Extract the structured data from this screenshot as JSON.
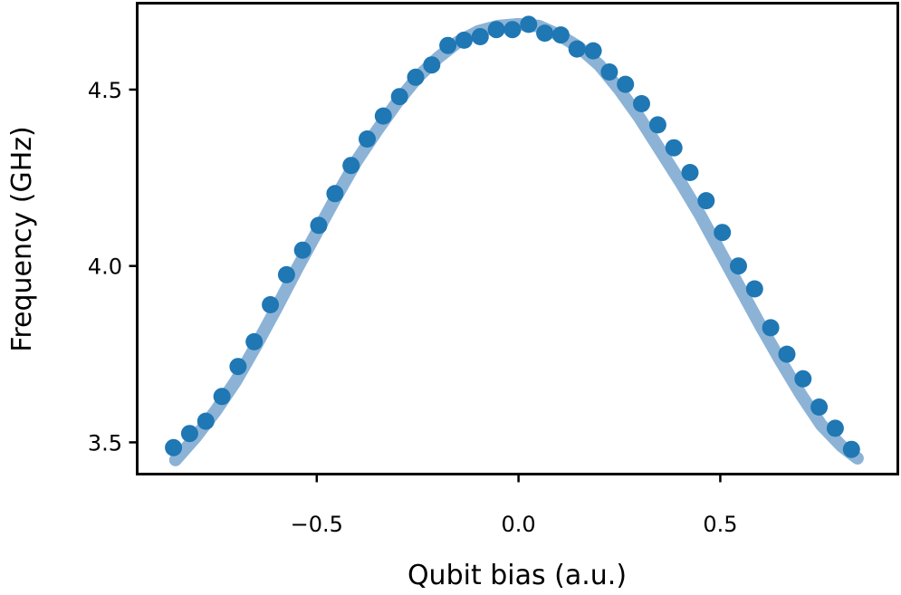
{
  "chart_data": {
    "type": "scatter",
    "title": "",
    "xlabel": "Qubit bias (a.u.)",
    "ylabel": "Frequency (GHz)",
    "xlim": [
      -0.945,
      0.94
    ],
    "ylim": [
      3.41,
      4.745
    ],
    "xticks": [
      -0.5,
      0.0,
      0.5
    ],
    "xtick_labels": [
      "−0.5",
      "0.0",
      "0.5"
    ],
    "yticks": [
      3.5,
      4.0,
      4.5
    ],
    "ytick_labels": [
      "3.5",
      "4.0",
      "4.5"
    ],
    "grid": false,
    "legend": "none",
    "colors": {
      "points": "#1f77b4",
      "fit": "#8cb3d6"
    },
    "series": [
      {
        "kind": "fit-line",
        "x": [
          -0.85,
          -0.8,
          -0.75,
          -0.7,
          -0.65,
          -0.6,
          -0.55,
          -0.5,
          -0.45,
          -0.4,
          -0.35,
          -0.3,
          -0.25,
          -0.2,
          -0.15,
          -0.1,
          -0.05,
          0.0,
          0.05,
          0.1,
          0.15,
          0.2,
          0.25,
          0.3,
          0.35,
          0.4,
          0.45,
          0.5,
          0.55,
          0.6,
          0.65,
          0.7,
          0.75,
          0.8,
          0.84
        ],
        "y": [
          3.45,
          3.515,
          3.59,
          3.675,
          3.775,
          3.88,
          3.99,
          4.095,
          4.2,
          4.3,
          4.385,
          4.465,
          4.535,
          4.59,
          4.635,
          4.665,
          4.68,
          4.685,
          4.68,
          4.655,
          4.62,
          4.57,
          4.5,
          4.42,
          4.33,
          4.24,
          4.145,
          4.04,
          3.935,
          3.83,
          3.73,
          3.635,
          3.55,
          3.49,
          3.455
        ]
      },
      {
        "kind": "points",
        "x": [
          -0.855,
          -0.815,
          -0.775,
          -0.735,
          -0.695,
          -0.655,
          -0.615,
          -0.575,
          -0.535,
          -0.495,
          -0.455,
          -0.415,
          -0.375,
          -0.335,
          -0.295,
          -0.255,
          -0.215,
          -0.175,
          -0.135,
          -0.095,
          -0.055,
          -0.015,
          0.025,
          0.065,
          0.105,
          0.145,
          0.185,
          0.225,
          0.265,
          0.305,
          0.345,
          0.385,
          0.425,
          0.465,
          0.505,
          0.545,
          0.585,
          0.625,
          0.665,
          0.705,
          0.745,
          0.785,
          0.825
        ],
        "y": [
          3.485,
          3.525,
          3.56,
          3.63,
          3.715,
          3.785,
          3.89,
          3.975,
          4.045,
          4.115,
          4.205,
          4.285,
          4.36,
          4.425,
          4.48,
          4.535,
          4.57,
          4.625,
          4.64,
          4.65,
          4.67,
          4.67,
          4.685,
          4.66,
          4.655,
          4.615,
          4.61,
          4.55,
          4.515,
          4.46,
          4.4,
          4.335,
          4.265,
          4.185,
          4.095,
          4.0,
          3.935,
          3.825,
          3.75,
          3.68,
          3.6,
          3.54,
          3.48
        ]
      }
    ]
  }
}
